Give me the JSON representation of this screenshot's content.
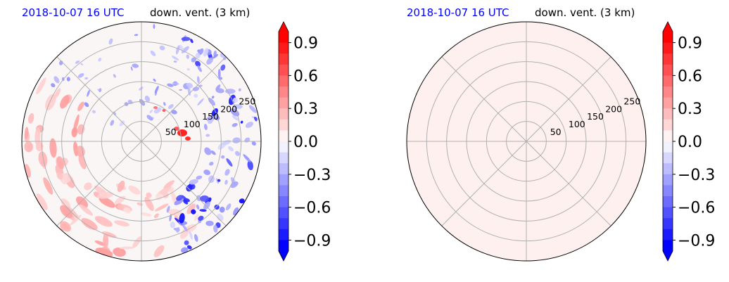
{
  "chart_data": [
    {
      "type": "heatmap",
      "projection": "polar",
      "title_left": "2018-10-07 16 UTC",
      "title_right": "down. vent. (3 km)",
      "radial_ticks": [
        "50",
        "100",
        "150",
        "200",
        "250"
      ],
      "radial_tick_values": [
        50,
        100,
        150,
        200,
        250
      ],
      "radial_range": [
        0,
        300
      ],
      "angular_gridlines_deg": [
        0,
        45,
        90,
        135,
        180,
        225,
        270,
        315
      ],
      "grid": true,
      "colormap": "bwr",
      "value_range": [
        -1.0,
        1.0
      ],
      "field_summary": "mostly near-zero values; negative (blue) features in the upper-right/east sector and along the north rim; positive (pink/red) bands in the west and south-west, strong positive peak just east of the center",
      "colorbar": {
        "ticks": [
          "0.9",
          "0.6",
          "0.3",
          "0.0",
          "−0.3",
          "−0.6",
          "−0.9"
        ],
        "tick_values": [
          0.9,
          0.6,
          0.3,
          0.0,
          -0.3,
          -0.6,
          -0.9
        ],
        "levels": 20,
        "extend": "both"
      }
    },
    {
      "type": "heatmap",
      "projection": "polar",
      "title_left": "2018-10-07 16 UTC",
      "title_right": "down. vent. (3 km)",
      "radial_ticks": [
        "50",
        "100",
        "150",
        "200",
        "250"
      ],
      "radial_tick_values": [
        50,
        100,
        150,
        200,
        250
      ],
      "radial_range": [
        0,
        300
      ],
      "angular_gridlines_deg": [
        0,
        45,
        90,
        135,
        180,
        225,
        270,
        315
      ],
      "grid": true,
      "colormap": "bwr",
      "value_range": [
        -1.0,
        1.0
      ],
      "field_summary": "uniform very slightly positive field (pale pink) everywhere",
      "colorbar": {
        "ticks": [
          "0.9",
          "0.6",
          "0.3",
          "0.0",
          "−0.3",
          "−0.6",
          "−0.9"
        ],
        "tick_values": [
          0.9,
          0.6,
          0.3,
          0.0,
          -0.3,
          -0.6,
          -0.9
        ],
        "levels": 20,
        "extend": "both"
      }
    }
  ],
  "colors": {
    "title_date": "#0000ff",
    "grid": "#b0b0b0",
    "uniform_fill": "#fff0f0"
  }
}
